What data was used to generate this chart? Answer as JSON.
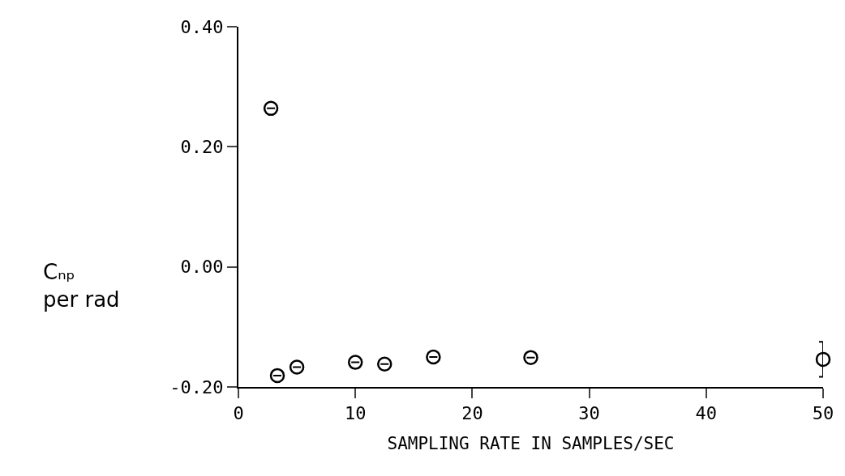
{
  "chart_data": {
    "type": "scatter",
    "xlabel": "SAMPLING RATE IN SAMPLES/SEC",
    "ylabel": "Cₙₚ\nper rad",
    "x": [
      2.78,
      3.33,
      5,
      10,
      12.5,
      16.67,
      25,
      50
    ],
    "values": [
      0.264,
      -0.181,
      -0.167,
      -0.159,
      -0.162,
      -0.15,
      -0.151,
      -0.154
    ],
    "errors": [
      null,
      null,
      null,
      null,
      null,
      null,
      null,
      [
        -0.183,
        -0.125
      ]
    ],
    "color": "#000000",
    "marker": "circle",
    "legend": false,
    "xlim": [
      0,
      50
    ],
    "xticks": [
      0,
      10,
      20,
      30,
      40,
      50
    ],
    "ylim": [
      -0.2,
      0.4
    ],
    "yticks": [
      {
        "value": -0.2,
        "label": "-0.20"
      },
      {
        "value": 0,
        "label": "0.00"
      },
      {
        "value": 0.2,
        "label": "0.20"
      },
      {
        "value": 0.4,
        "label": "0.40"
      }
    ]
  }
}
